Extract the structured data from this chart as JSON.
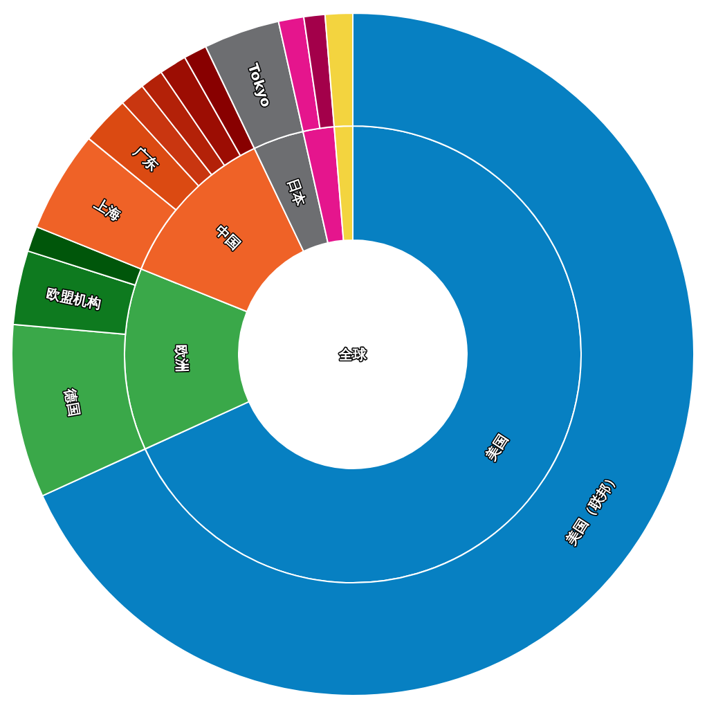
{
  "chart_data": [
    {
      "type": "donut",
      "title": "全球",
      "categories": [
        "美国",
        "欧洲",
        "中国",
        "日本",
        null,
        null
      ],
      "values": [
        68.2,
        12.9,
        11.8,
        3.6,
        2.2,
        1.3
      ],
      "colors": [
        "#0780c2",
        "#3aa849",
        "#ef6227",
        "#6d6e71",
        "#e5158d",
        "#f3d43f"
      ]
    },
    {
      "type": "donut",
      "categories": [
        "美国（联邦）",
        "德国",
        "欧盟机构",
        null,
        "上海",
        "广东",
        null,
        null,
        null,
        null,
        "Tokyo",
        null,
        null,
        null
      ],
      "values": [
        68.2,
        8.2,
        3.5,
        1.2,
        4.8,
        2.3,
        1.2,
        1.1,
        1.3,
        1.1,
        3.6,
        1.2,
        1.0,
        1.3
      ],
      "colors": [
        "#0780c2",
        "#3aa849",
        "#0e7a1f",
        "#00560a",
        "#ef6227",
        "#db4a12",
        "#c93610",
        "#b32108",
        "#9c0d03",
        "#880000",
        "#6d6e71",
        "#e5158d",
        "#a3004a",
        "#f3d43f"
      ]
    }
  ]
}
